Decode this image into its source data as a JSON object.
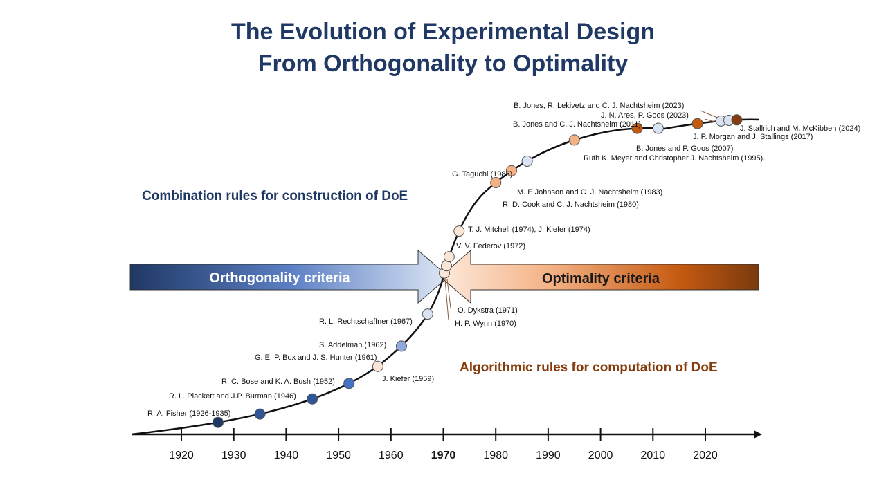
{
  "title": {
    "line1": "The Evolution of Experimental Design",
    "line2": "From Orthogonality to Optimality"
  },
  "phases": {
    "construction": "Combination rules for construction of DoE",
    "computation": "Algorithmic rules for computation of DoE"
  },
  "arrows": {
    "orthogonality": "Orthogonality criteria",
    "optimality": "Optimality criteria"
  },
  "axis": {
    "ticks": [
      "1920",
      "1930",
      "1940",
      "1950",
      "1960",
      "1970",
      "1980",
      "1990",
      "2000",
      "2010",
      "2020"
    ],
    "highlight": "1970"
  },
  "colors": {
    "title": "#1f3864",
    "navy": "#1f3864",
    "blue_mid": "#4472c4",
    "blue_light": "#b4c7e7",
    "blue_pale": "#dae3f3",
    "peach_pale": "#fbe5d6",
    "peach": "#f4b183",
    "orange": "#c55a11",
    "brown": "#843c0c"
  },
  "milestones": [
    {
      "label": "R. A. Fisher (1926-1935)",
      "year": 1927,
      "color": "#1f3864"
    },
    {
      "label": "R. L. Plackett and J.P. Burman (1946)",
      "year": 1935,
      "color": "#2f5597"
    },
    {
      "label": "R. C. Bose and K. A. Bush (1952)",
      "year": 1945,
      "color": "#2f5597"
    },
    {
      "label": "G. E. P. Box and J. S. Hunter (1961)",
      "year": 1952,
      "color": "#4472c4"
    },
    {
      "label": "S. Addelman (1962)",
      "year": 1962,
      "color": "#8faadc"
    },
    {
      "label": "R. L. Rechtschaffner (1967)",
      "year": 1967,
      "color": "#dae3f3"
    },
    {
      "label": "J. Kiefer (1959)",
      "year": 1957.5,
      "color": "#fbe5d6"
    },
    {
      "label": "O. Dykstra (1971)",
      "year": 1970.2,
      "color": "#fbe5d6"
    },
    {
      "label": "H. P. Wynn (1970)",
      "year": 1970.6,
      "color": "#fbe5d6"
    },
    {
      "label": "V. V. Federov (1972)",
      "year": 1971.1,
      "color": "#fbe5d6"
    },
    {
      "label": "T. J. Mitchell (1974), J. Kiefer (1974)",
      "year": 1973,
      "color": "#fbe5d6"
    },
    {
      "label": "R. D. Cook and C. J. Nachtsheim (1980)",
      "year": 1980,
      "color": "#f4b183"
    },
    {
      "label": "M. E Johnson and C. J. Nachtsheim (1983)",
      "year": 1983,
      "color": "#f4b183"
    },
    {
      "label": "G. Taguchi (1986)",
      "year": 1986,
      "color": "#dae3f3"
    },
    {
      "label": "Ruth K. Meyer and Christopher J. Nachtsheim (1995).",
      "year": 1995,
      "color": "#f4b183"
    },
    {
      "label": "B. Jones and P. Goos (2007)",
      "year": 2007,
      "color": "#c55a11"
    },
    {
      "label": "B. Jones and C. J. Nachtsheim (2011)",
      "year": 2011,
      "color": "#dae3f3"
    },
    {
      "label": "J. P. Morgan and J. Stallings (2017)",
      "year": 2018.5,
      "color": "#c55a11"
    },
    {
      "label": "J. N. Ares, P. Goos (2023)",
      "year": 2023,
      "color": "#dae3f3"
    },
    {
      "label": "B. Jones, R. Lekivetz and C. J. Nachtsheim (2023)",
      "year": 2024.5,
      "color": "#dae3f3"
    },
    {
      "label": "J. Stallrich and M. McKibben (2024)",
      "year": 2026,
      "color": "#843c0c"
    }
  ]
}
